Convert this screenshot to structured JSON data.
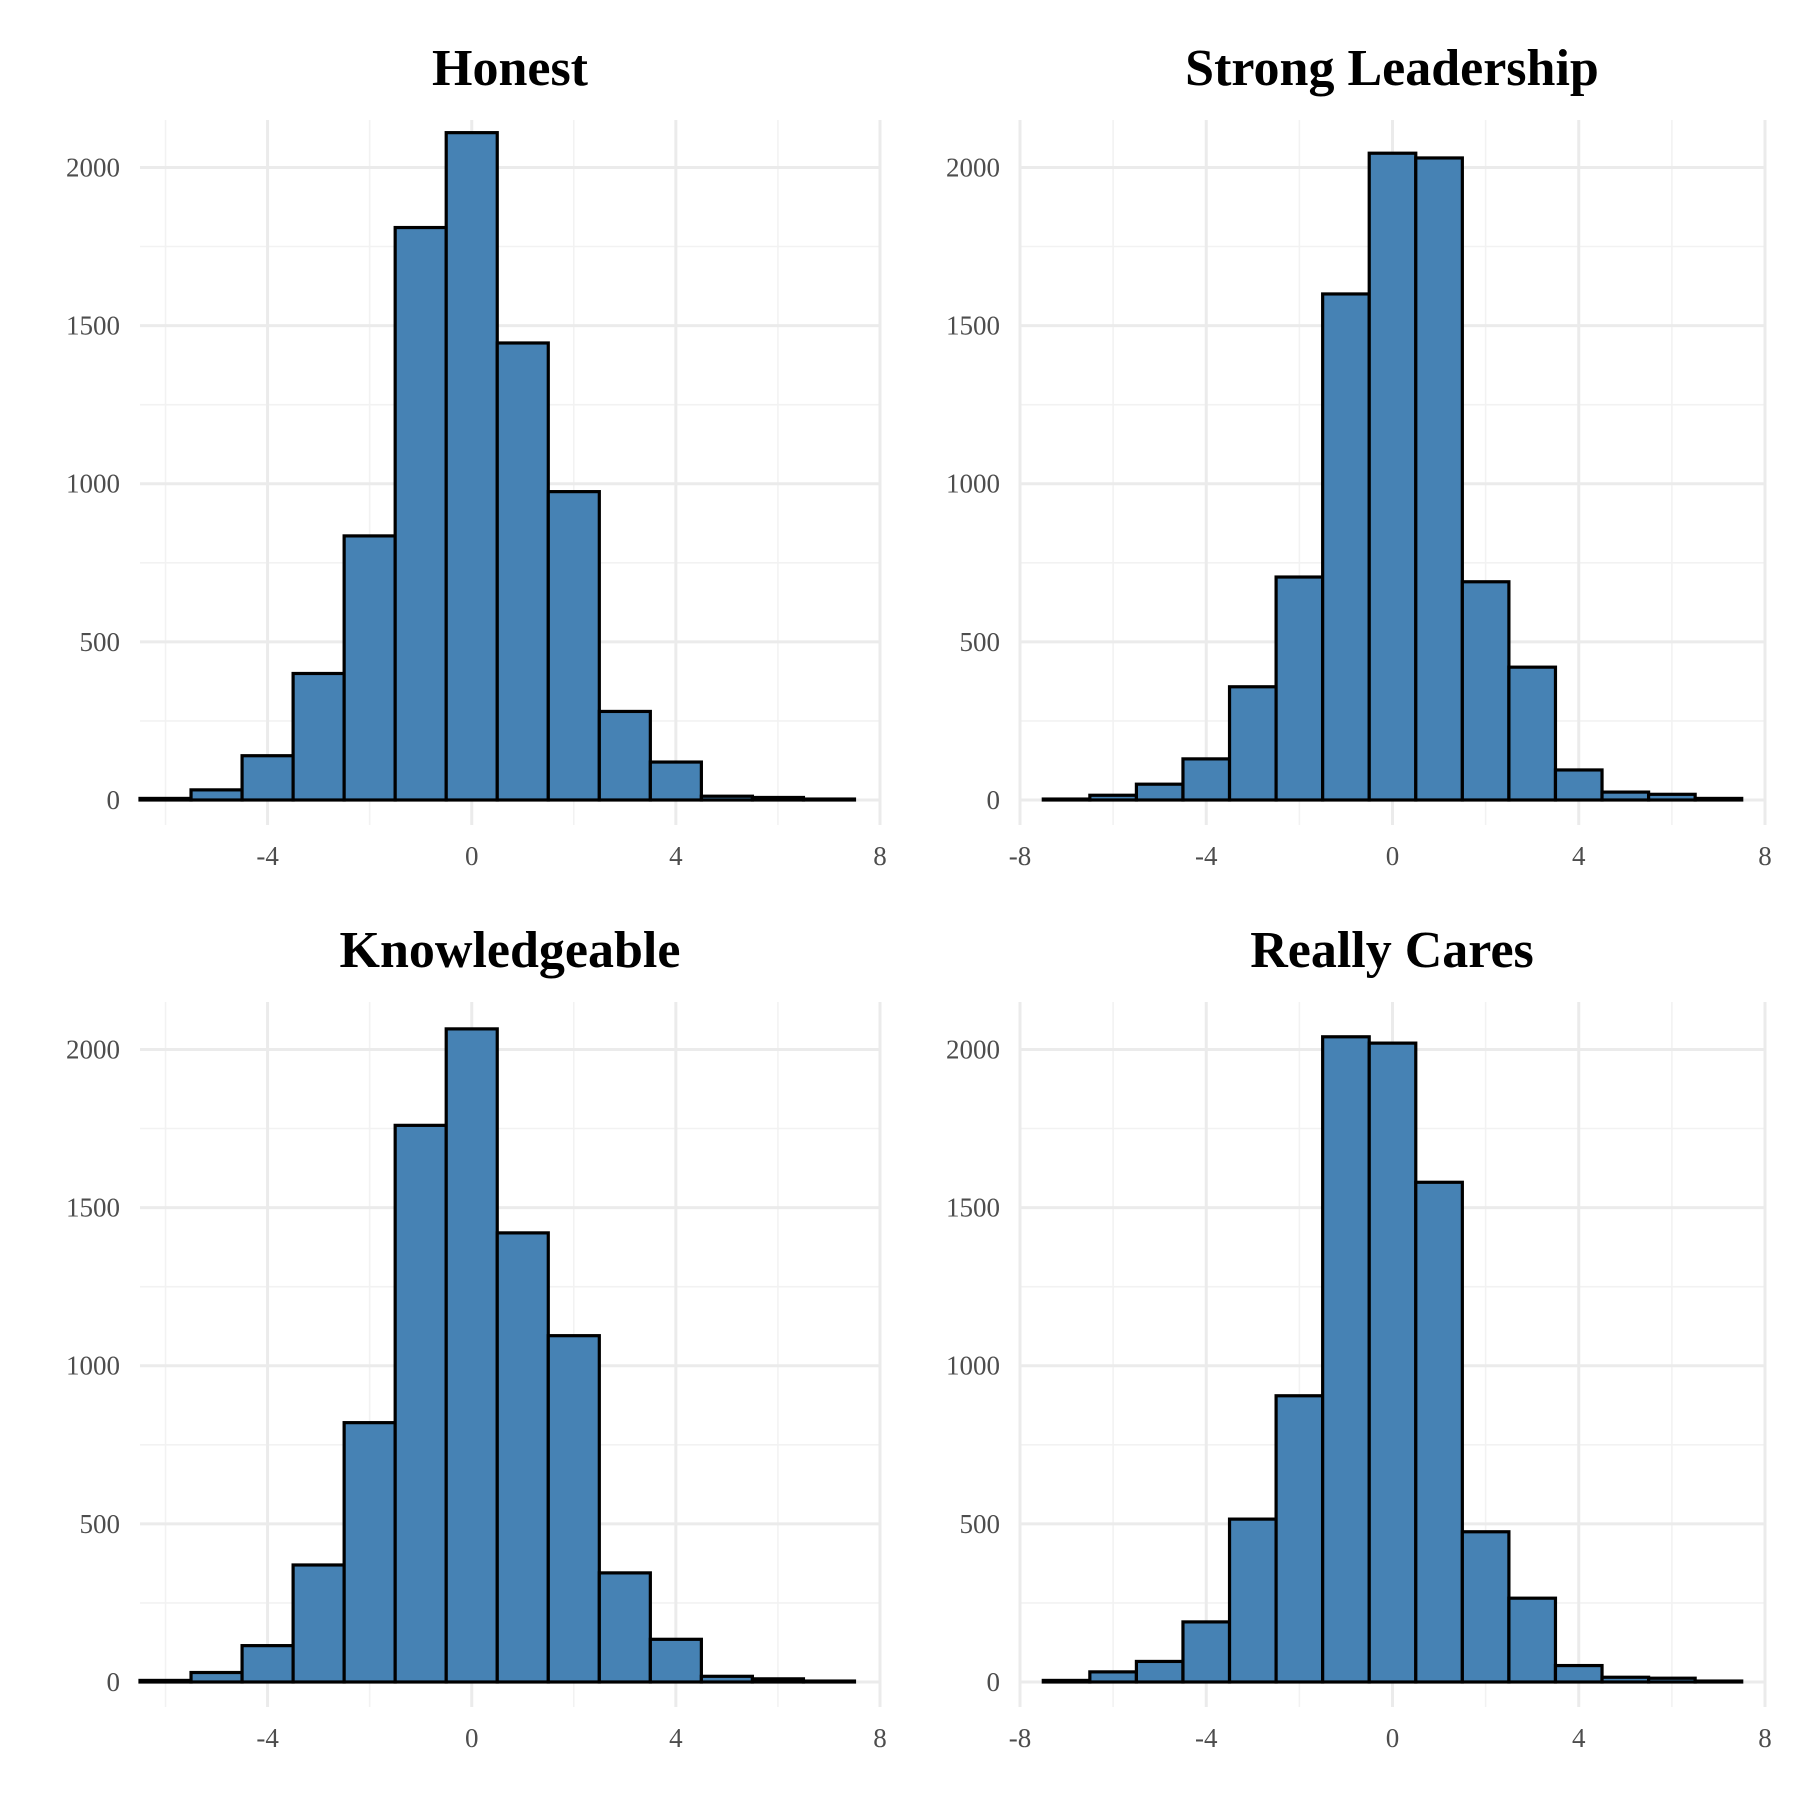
{
  "chart_data": [
    {
      "type": "bar",
      "title": "Honest",
      "xlim": [
        -6.5,
        8
      ],
      "ylim": [
        0,
        2150
      ],
      "x_ticks": [
        -4,
        0,
        4,
        8
      ],
      "y_ticks": [
        0,
        500,
        1000,
        1500,
        2000
      ],
      "bin_width": 1,
      "bin_centers": [
        -6,
        -5,
        -4,
        -3,
        -2,
        -1,
        0,
        1,
        2,
        3,
        4,
        5,
        6,
        7
      ],
      "values": [
        5,
        32,
        140,
        400,
        835,
        1810,
        2110,
        1445,
        975,
        280,
        120,
        12,
        8,
        3
      ],
      "grid": true
    },
    {
      "type": "bar",
      "title": "Strong Leadership",
      "xlim": [
        -8,
        8
      ],
      "ylim": [
        0,
        2150
      ],
      "x_ticks": [
        -8,
        -4,
        0,
        4,
        8
      ],
      "y_ticks": [
        0,
        500,
        1000,
        1500,
        2000
      ],
      "bin_width": 1,
      "bin_centers": [
        -7,
        -6,
        -5,
        -4,
        -3,
        -2,
        -1,
        0,
        1,
        2,
        3,
        4,
        5,
        6,
        7
      ],
      "values": [
        3,
        15,
        50,
        130,
        358,
        705,
        1600,
        2045,
        2030,
        690,
        420,
        95,
        25,
        18,
        5
      ],
      "grid": true
    },
    {
      "type": "bar",
      "title": "Knowledgeable",
      "xlim": [
        -6.5,
        8
      ],
      "ylim": [
        0,
        2150
      ],
      "x_ticks": [
        -4,
        0,
        4,
        8
      ],
      "y_ticks": [
        0,
        500,
        1000,
        1500,
        2000
      ],
      "bin_width": 1,
      "bin_centers": [
        -6,
        -5,
        -4,
        -3,
        -2,
        -1,
        0,
        1,
        2,
        3,
        4,
        5,
        6,
        7
      ],
      "values": [
        5,
        30,
        115,
        370,
        820,
        1760,
        2065,
        1420,
        1095,
        345,
        135,
        18,
        10,
        3
      ],
      "grid": true
    },
    {
      "type": "bar",
      "title": "Really Cares",
      "xlim": [
        -8,
        8
      ],
      "ylim": [
        0,
        2150
      ],
      "x_ticks": [
        -8,
        -4,
        0,
        4,
        8
      ],
      "y_ticks": [
        0,
        500,
        1000,
        1500,
        2000
      ],
      "bin_width": 1,
      "bin_centers": [
        -7,
        -6,
        -5,
        -4,
        -3,
        -2,
        -1,
        0,
        1,
        2,
        3,
        4,
        5,
        6,
        7
      ],
      "values": [
        5,
        32,
        65,
        190,
        515,
        905,
        2040,
        2020,
        1580,
        475,
        265,
        52,
        15,
        12,
        3
      ],
      "grid": true
    }
  ]
}
